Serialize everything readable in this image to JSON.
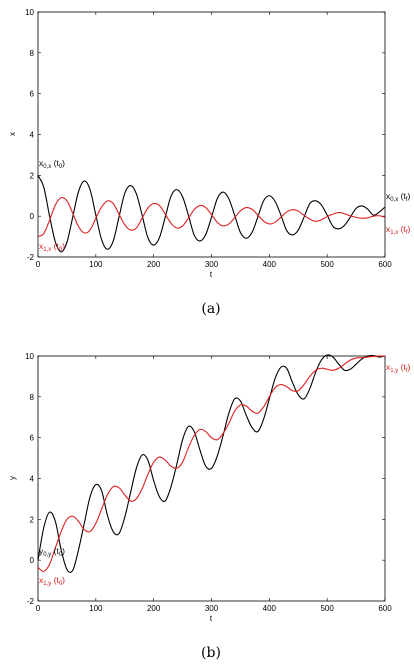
{
  "chart_data": [
    {
      "type": "line",
      "panel": "a",
      "caption": "(a)",
      "xlabel": "t",
      "ylabel": "x",
      "xlim": [
        0,
        600
      ],
      "ylim": [
        -2,
        10
      ],
      "xticks": [
        "0",
        "100",
        "200",
        "300",
        "400",
        "500",
        "600"
      ],
      "yticks": [
        "-2",
        "0",
        "2",
        "4",
        "6",
        "8",
        "10"
      ],
      "grid": false,
      "series": [
        {
          "color": "#000000",
          "x": [
            0,
            10,
            20,
            30,
            40,
            50,
            60,
            70,
            80,
            90,
            100,
            110,
            120,
            130,
            140,
            150,
            160,
            170,
            180,
            190,
            200,
            210,
            220,
            230,
            240,
            250,
            260,
            270,
            280,
            290,
            300,
            310,
            320,
            330,
            340,
            350,
            360,
            370,
            380,
            390,
            400,
            410,
            420,
            430,
            440,
            450,
            460,
            470,
            480,
            490,
            500,
            510,
            520,
            530,
            540,
            550,
            560,
            570,
            580,
            590,
            600
          ],
          "y": [
            2.0,
            1.42,
            0.0,
            -1.26,
            -1.75,
            -1.28,
            -0.05,
            1.2,
            1.72,
            1.3,
            0.05,
            -1.15,
            -1.62,
            -1.22,
            -0.05,
            1.12,
            1.5,
            1.1,
            0.05,
            -1.05,
            -1.42,
            -1.05,
            -0.05,
            0.98,
            1.3,
            0.95,
            0.05,
            -0.92,
            -1.22,
            -0.9,
            -0.05,
            0.86,
            1.18,
            0.85,
            0.05,
            -0.8,
            -1.08,
            -0.8,
            -0.05,
            0.75,
            1.0,
            0.72,
            0.05,
            -0.7,
            -0.92,
            -0.68,
            -0.05,
            0.62,
            0.75,
            0.55,
            0.05,
            -0.5,
            -0.62,
            -0.45,
            -0.05,
            0.38,
            0.5,
            0.35,
            0.05,
            0.2,
            0.45
          ]
        },
        {
          "color": "#dd2020",
          "x": [
            0,
            10,
            20,
            30,
            40,
            50,
            60,
            70,
            80,
            90,
            100,
            110,
            120,
            130,
            140,
            150,
            160,
            170,
            180,
            190,
            200,
            210,
            220,
            230,
            240,
            250,
            260,
            270,
            280,
            290,
            300,
            310,
            320,
            330,
            340,
            350,
            360,
            370,
            380,
            390,
            400,
            410,
            420,
            430,
            440,
            450,
            460,
            470,
            480,
            490,
            500,
            510,
            520,
            530,
            540,
            550,
            560,
            570,
            580,
            590,
            600
          ],
          "y": [
            -1.0,
            -0.85,
            -0.2,
            0.55,
            0.9,
            0.75,
            0.15,
            -0.5,
            -0.82,
            -0.68,
            -0.1,
            0.45,
            0.75,
            0.62,
            0.1,
            -0.42,
            -0.68,
            -0.58,
            -0.1,
            0.4,
            0.62,
            0.52,
            0.1,
            -0.35,
            -0.58,
            -0.48,
            -0.1,
            0.32,
            0.52,
            0.42,
            0.08,
            -0.3,
            -0.48,
            -0.38,
            -0.08,
            0.26,
            0.42,
            0.34,
            0.06,
            -0.24,
            -0.38,
            -0.3,
            -0.05,
            0.2,
            0.32,
            0.25,
            0.04,
            -0.15,
            -0.25,
            -0.18,
            -0.02,
            0.1,
            0.18,
            0.12,
            0.02,
            -0.06,
            -0.1,
            -0.08,
            0.0,
            0.02,
            -0.05
          ]
        }
      ],
      "annotations": [
        {
          "main": "x",
          "sub": "0,x",
          "rest": " (t",
          "sub2": "0",
          "end": ")",
          "color": "#000000"
        },
        {
          "main": "x",
          "sub": "1,x",
          "rest": " (t",
          "sub2": "0",
          "end": ")",
          "color": "#dd2020"
        },
        {
          "main": "x",
          "sub": "0,x",
          "rest": " (t",
          "sub2": "f",
          "end": ")",
          "color": "#000000"
        },
        {
          "main": "x",
          "sub": "1,x",
          "rest": " (t",
          "sub2": "f",
          "end": ")",
          "color": "#dd2020"
        }
      ]
    },
    {
      "type": "line",
      "panel": "b",
      "caption": "(b)",
      "xlabel": "t",
      "ylabel": "y",
      "xlim": [
        0,
        600
      ],
      "ylim": [
        -2,
        10
      ],
      "xticks": [
        "0",
        "100",
        "200",
        "300",
        "400",
        "500",
        "600"
      ],
      "yticks": [
        "-2",
        "0",
        "2",
        "4",
        "6",
        "8",
        "10"
      ],
      "grid": false,
      "series": [
        {
          "color": "#000000",
          "x": [
            0,
            10,
            20,
            30,
            40,
            50,
            60,
            70,
            80,
            90,
            100,
            110,
            120,
            130,
            140,
            150,
            160,
            170,
            180,
            190,
            200,
            210,
            220,
            230,
            240,
            250,
            260,
            270,
            280,
            290,
            300,
            310,
            320,
            330,
            340,
            350,
            360,
            370,
            380,
            390,
            400,
            410,
            420,
            430,
            440,
            450,
            460,
            470,
            480,
            490,
            500,
            510,
            520,
            530,
            540,
            550,
            560,
            570,
            580,
            590,
            600
          ],
          "y": [
            0.0,
            1.6,
            2.35,
            1.9,
            0.5,
            -0.45,
            -0.5,
            0.5,
            1.8,
            3.1,
            3.7,
            3.4,
            2.2,
            1.4,
            1.3,
            2.1,
            3.3,
            4.5,
            5.15,
            4.9,
            3.9,
            3.1,
            2.9,
            3.6,
            4.7,
            5.9,
            6.55,
            6.3,
            5.4,
            4.6,
            4.5,
            5.1,
            6.1,
            7.2,
            7.9,
            7.8,
            7.1,
            6.5,
            6.3,
            6.9,
            7.9,
            8.9,
            9.45,
            9.4,
            8.7,
            8.1,
            7.9,
            8.4,
            9.2,
            9.8,
            10.05,
            9.95,
            9.6,
            9.3,
            9.35,
            9.6,
            9.85,
            10.0,
            10.02,
            9.95,
            10.0
          ]
        },
        {
          "color": "#dd2020",
          "x": [
            0,
            10,
            20,
            30,
            40,
            50,
            60,
            70,
            80,
            90,
            100,
            110,
            120,
            130,
            140,
            150,
            160,
            170,
            180,
            190,
            200,
            210,
            220,
            230,
            240,
            250,
            260,
            270,
            280,
            290,
            300,
            310,
            320,
            330,
            340,
            350,
            360,
            370,
            380,
            390,
            400,
            410,
            420,
            430,
            440,
            450,
            460,
            470,
            480,
            490,
            500,
            510,
            520,
            530,
            540,
            550,
            560,
            570,
            580,
            590,
            600
          ],
          "y": [
            -0.35,
            -0.55,
            -0.2,
            0.6,
            1.4,
            2.0,
            2.15,
            1.9,
            1.5,
            1.4,
            1.8,
            2.5,
            3.2,
            3.6,
            3.55,
            3.2,
            2.9,
            3.0,
            3.5,
            4.2,
            4.8,
            5.05,
            4.9,
            4.6,
            4.5,
            4.8,
            5.5,
            6.1,
            6.4,
            6.3,
            6.0,
            5.9,
            6.2,
            6.7,
            7.3,
            7.6,
            7.55,
            7.3,
            7.2,
            7.5,
            8.0,
            8.45,
            8.6,
            8.5,
            8.3,
            8.3,
            8.6,
            9.0,
            9.3,
            9.4,
            9.35,
            9.3,
            9.4,
            9.6,
            9.8,
            9.9,
            9.92,
            9.95,
            9.98,
            9.99,
            10.0
          ]
        }
      ],
      "annotations": [
        {
          "main": "y",
          "sub": "0,y",
          "rest": " (t",
          "sub2": "0",
          "end": ")",
          "color": "#000000"
        },
        {
          "main": "x",
          "sub": "1,y",
          "rest": " (t",
          "sub2": "0",
          "end": ")",
          "color": "#dd2020"
        },
        {
          "main": "x",
          "sub": "1,y",
          "rest": " (t",
          "sub2": "f",
          "end": ")",
          "color": "#dd2020"
        }
      ]
    }
  ]
}
